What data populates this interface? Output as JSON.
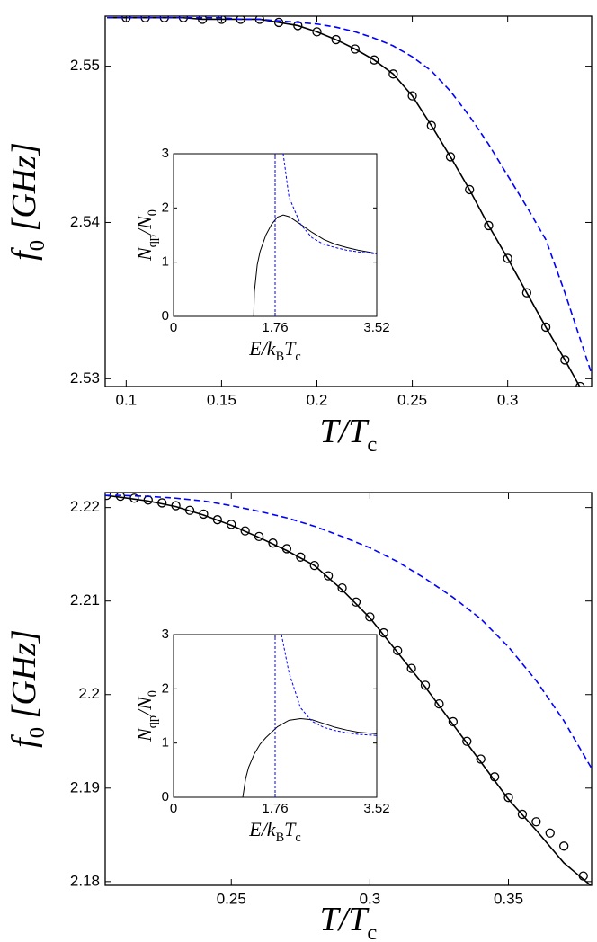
{
  "chart_data": [
    {
      "type": "line",
      "xlabel": [
        {
          "text": "T/T"
        },
        {
          "text": "c",
          "sub": true
        }
      ],
      "ylabel": [
        {
          "text": "f"
        },
        {
          "text": "0",
          "sub": true
        },
        {
          "text": " [GHz]"
        }
      ],
      "xlim": [
        0.089,
        0.344
      ],
      "ylim": [
        2.5295,
        2.5532
      ],
      "xticks": [
        0.1,
        0.15,
        0.2,
        0.25,
        0.3
      ],
      "yticks": [
        2.53,
        2.54,
        2.55
      ],
      "series": [
        {
          "color": "#000000",
          "style": "solid",
          "x": [
            0.09,
            0.1,
            0.11,
            0.12,
            0.13,
            0.14,
            0.15,
            0.16,
            0.17,
            0.18,
            0.19,
            0.2,
            0.21,
            0.22,
            0.23,
            0.24,
            0.25,
            0.26,
            0.27,
            0.28,
            0.29,
            0.3,
            0.31,
            0.32,
            0.33,
            0.34
          ],
          "values": [
            2.5531,
            2.5531,
            2.5531,
            2.5531,
            2.5531,
            2.553,
            2.553,
            2.553,
            2.553,
            2.5528,
            2.5526,
            2.5522,
            2.5517,
            2.5511,
            2.5504,
            2.5495,
            2.5481,
            2.5462,
            2.5442,
            2.5421,
            2.5398,
            2.5377,
            2.5355,
            2.5333,
            2.5312,
            2.529
          ]
        },
        {
          "color": "#000000",
          "style": "markers",
          "x": [
            0.1,
            0.11,
            0.12,
            0.13,
            0.14,
            0.15,
            0.16,
            0.17,
            0.18,
            0.19,
            0.2,
            0.21,
            0.22,
            0.23,
            0.24,
            0.25,
            0.26,
            0.27,
            0.28,
            0.29,
            0.3,
            0.31,
            0.32,
            0.33,
            0.338
          ],
          "values": [
            2.5531,
            2.5531,
            2.5531,
            2.5531,
            2.553,
            2.553,
            2.553,
            2.553,
            2.5528,
            2.5526,
            2.5522,
            2.5517,
            2.5511,
            2.5504,
            2.5495,
            2.5481,
            2.5462,
            2.5442,
            2.5421,
            2.5398,
            2.5377,
            2.5355,
            2.5333,
            2.5312,
            2.5295
          ]
        },
        {
          "color": "#0000ff",
          "style": "dashed",
          "x": [
            0.09,
            0.1,
            0.11,
            0.12,
            0.13,
            0.14,
            0.15,
            0.16,
            0.17,
            0.18,
            0.19,
            0.2,
            0.21,
            0.22,
            0.23,
            0.24,
            0.25,
            0.26,
            0.27,
            0.28,
            0.29,
            0.3,
            0.31,
            0.32,
            0.33,
            0.34,
            0.344
          ],
          "values": [
            2.5531,
            2.5531,
            2.5531,
            2.5531,
            2.5531,
            2.5531,
            2.5531,
            2.553,
            2.553,
            2.5529,
            2.5528,
            2.5527,
            2.5525,
            2.5522,
            2.5518,
            2.5513,
            2.5506,
            2.5497,
            2.5484,
            2.5468,
            2.545,
            2.543,
            2.541,
            2.5389,
            2.5355,
            2.5318,
            2.5303
          ]
        }
      ],
      "inset": {
        "type": "line",
        "xlabel": [
          {
            "text": "E/k"
          },
          {
            "text": "B",
            "sub": true
          },
          {
            "text": "T"
          },
          {
            "text": "c",
            "sub": true
          }
        ],
        "ylabel": [
          {
            "text": "N"
          },
          {
            "text": "qp",
            "sub": true
          },
          {
            "text": "/N"
          },
          {
            "text": "0",
            "sub": true
          }
        ],
        "xlim": [
          0,
          3.52
        ],
        "ylim": [
          0,
          3
        ],
        "xticks": [
          0,
          1.76,
          3.52
        ],
        "yticks": [
          0,
          1,
          2,
          3
        ],
        "series": [
          {
            "color": "#000000",
            "style": "solid",
            "x": [
              1.39,
              1.4,
              1.45,
              1.5,
              1.6,
              1.7,
              1.8,
              1.9,
              2.0,
              2.2,
              2.4,
              2.6,
              2.8,
              3.0,
              3.2,
              3.52
            ],
            "values": [
              0,
              0.45,
              0.95,
              1.2,
              1.5,
              1.7,
              1.83,
              1.87,
              1.84,
              1.7,
              1.55,
              1.42,
              1.33,
              1.27,
              1.22,
              1.16
            ]
          },
          {
            "color": "#0000ff",
            "style": "dashed-thin",
            "x": [
              1.76,
              1.76,
              1.8,
              1.9,
              2.0,
              2.2,
              2.4,
              2.6,
              2.8,
              3.0,
              3.2,
              3.52
            ],
            "values": [
              0,
              3,
              null,
              3.0,
              2.2,
              1.7,
              1.45,
              1.33,
              1.27,
              1.22,
              1.19,
              1.15
            ]
          }
        ]
      }
    },
    {
      "type": "line",
      "xlabel": [
        {
          "text": "T/T"
        },
        {
          "text": "c",
          "sub": true
        }
      ],
      "ylabel": [
        {
          "text": "f"
        },
        {
          "text": "0",
          "sub": true
        },
        {
          "text": " [GHz]"
        }
      ],
      "xlim": [
        0.2045,
        0.38
      ],
      "ylim": [
        2.1796,
        2.2216
      ],
      "xticks": [
        0.25,
        0.3,
        0.35
      ],
      "yticks": [
        2.18,
        2.19,
        2.2,
        2.21,
        2.22
      ],
      "series": [
        {
          "color": "#000000",
          "style": "solid",
          "x": [
            0.2045,
            0.21,
            0.22,
            0.23,
            0.24,
            0.25,
            0.26,
            0.27,
            0.28,
            0.29,
            0.3,
            0.31,
            0.32,
            0.33,
            0.34,
            0.35,
            0.36,
            0.37,
            0.38
          ],
          "values": [
            2.2213,
            2.2211,
            2.2207,
            2.2201,
            2.2192,
            2.2181,
            2.2168,
            2.2154,
            2.2138,
            2.2112,
            2.2082,
            2.2045,
            2.2008,
            2.1968,
            2.1928,
            2.1888,
            2.1855,
            2.182,
            2.1795
          ]
        },
        {
          "color": "#000000",
          "style": "markers",
          "x": [
            0.205,
            0.21,
            0.215,
            0.22,
            0.225,
            0.23,
            0.235,
            0.24,
            0.245,
            0.25,
            0.255,
            0.26,
            0.265,
            0.27,
            0.275,
            0.28,
            0.285,
            0.29,
            0.295,
            0.3,
            0.305,
            0.31,
            0.315,
            0.32,
            0.325,
            0.33,
            0.335,
            0.34,
            0.345,
            0.35,
            0.355,
            0.36,
            0.365,
            0.37,
            0.377
          ],
          "values": [
            2.2213,
            2.2212,
            2.221,
            2.2208,
            2.2205,
            2.2202,
            2.2197,
            2.2193,
            2.2187,
            2.2182,
            2.2175,
            2.2169,
            2.2162,
            2.2156,
            2.2147,
            2.2138,
            2.2127,
            2.2114,
            2.2099,
            2.2083,
            2.2066,
            2.2047,
            2.2028,
            2.201,
            2.199,
            2.1971,
            2.195,
            2.1931,
            2.1912,
            2.189,
            2.1872,
            2.1864,
            2.1852,
            2.1838,
            2.1806
          ]
        },
        {
          "color": "#0000ff",
          "style": "dashed",
          "x": [
            0.2045,
            0.21,
            0.22,
            0.23,
            0.24,
            0.25,
            0.26,
            0.27,
            0.28,
            0.29,
            0.3,
            0.31,
            0.32,
            0.33,
            0.34,
            0.35,
            0.36,
            0.37,
            0.38
          ],
          "values": [
            2.2213,
            2.2213,
            2.2212,
            2.221,
            2.2207,
            2.2202,
            2.2196,
            2.2189,
            2.218,
            2.2169,
            2.2157,
            2.2142,
            2.2124,
            2.2104,
            2.2081,
            2.2051,
            2.2015,
            2.1972,
            2.1921
          ]
        }
      ],
      "inset": {
        "type": "line",
        "xlabel": [
          {
            "text": "E/k"
          },
          {
            "text": "B",
            "sub": true
          },
          {
            "text": "T"
          },
          {
            "text": "c",
            "sub": true
          }
        ],
        "ylabel": [
          {
            "text": "N"
          },
          {
            "text": "qp",
            "sub": true
          },
          {
            "text": "/N"
          },
          {
            "text": "0",
            "sub": true
          }
        ],
        "xlim": [
          0,
          3.52
        ],
        "ylim": [
          0,
          3
        ],
        "xticks": [
          0,
          1.76,
          3.52
        ],
        "yticks": [
          0,
          1,
          2,
          3
        ],
        "series": [
          {
            "color": "#000000",
            "style": "solid",
            "x": [
              1.2,
              1.25,
              1.3,
              1.4,
              1.5,
              1.6,
              1.8,
              2.0,
              2.2,
              2.4,
              2.6,
              2.8,
              3.0,
              3.2,
              3.52
            ],
            "values": [
              0,
              0.35,
              0.55,
              0.8,
              0.98,
              1.1,
              1.3,
              1.42,
              1.45,
              1.43,
              1.36,
              1.29,
              1.24,
              1.2,
              1.17
            ]
          },
          {
            "color": "#0000ff",
            "style": "dashed-thin",
            "x": [
              1.76,
              1.76,
              1.8,
              1.87,
              2.0,
              2.2,
              2.4,
              2.6,
              2.8,
              3.0,
              3.2,
              3.52
            ],
            "values": [
              0,
              3,
              null,
              3.0,
              2.3,
              1.65,
              1.4,
              1.29,
              1.23,
              1.19,
              1.16,
              1.14
            ]
          }
        ]
      }
    }
  ]
}
